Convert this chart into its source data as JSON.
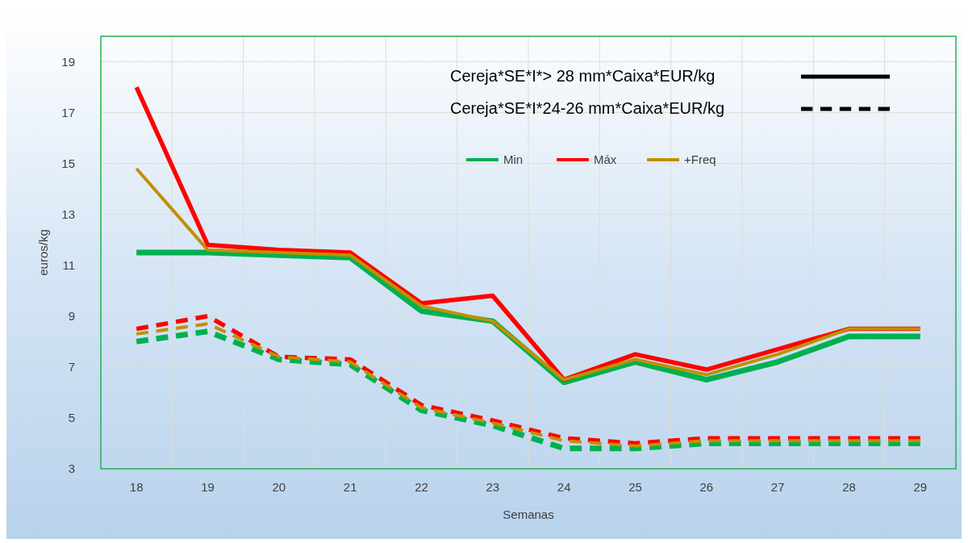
{
  "chart_data": {
    "type": "line",
    "xlabel": "Semanas",
    "ylabel": "euros/kg",
    "categories": [
      "18",
      "19",
      "20",
      "21",
      "22",
      "23",
      "24",
      "25",
      "26",
      "27",
      "28",
      "29"
    ],
    "ylim": [
      3,
      20
    ],
    "yticks": [
      3,
      5,
      7,
      9,
      11,
      13,
      15,
      17,
      19
    ],
    "grid": true,
    "legend": "top right",
    "annotations": [
      "Cereja*SE*I*> 28 mm*Caixa*EUR/kg",
      "Cereja*SE*I*24-26 mm*Caixa*EUR/kg"
    ],
    "series": [
      {
        "name": "Min",
        "color": "#00b050",
        "line_style": "solid",
        "values": [
          11.5,
          11.5,
          11.4,
          11.3,
          9.2,
          8.8,
          6.4,
          7.2,
          6.5,
          7.2,
          8.2,
          8.2
        ]
      },
      {
        "name": "Máx",
        "color": "#ff0000",
        "line_style": "solid",
        "values": [
          18,
          11.8,
          11.6,
          11.5,
          9.5,
          9.8,
          6.5,
          7.5,
          6.9,
          7.7,
          8.5,
          8.5
        ]
      },
      {
        "name": "+Freq",
        "color": "#c09000",
        "line_style": "solid",
        "values": [
          14.8,
          11.6,
          11.5,
          11.4,
          9.4,
          8.8,
          6.5,
          7.3,
          6.7,
          7.5,
          8.5,
          8.5
        ]
      },
      {
        "color": "#00b050",
        "line_style": "dashed",
        "values": [
          8.0,
          8.4,
          7.3,
          7.1,
          5.3,
          4.7,
          3.8,
          3.8,
          4.0,
          4.0,
          4.0,
          4.0
        ]
      },
      {
        "color": "#ff0000",
        "line_style": "dashed",
        "values": [
          8.5,
          9.0,
          7.4,
          7.3,
          5.5,
          4.9,
          4.2,
          4.0,
          4.2,
          4.2,
          4.2,
          4.2
        ]
      },
      {
        "color": "#c09000",
        "line_style": "dashed",
        "values": [
          8.3,
          8.7,
          7.4,
          7.2,
          5.4,
          4.8,
          4.1,
          3.9,
          4.1,
          4.1,
          4.1,
          4.1
        ]
      }
    ]
  }
}
